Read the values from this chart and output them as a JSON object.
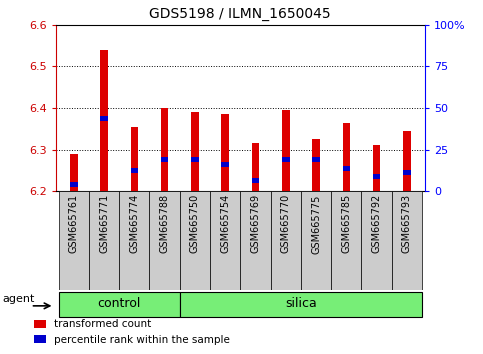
{
  "title": "GDS5198 / ILMN_1650045",
  "samples": [
    "GSM665761",
    "GSM665771",
    "GSM665774",
    "GSM665788",
    "GSM665750",
    "GSM665754",
    "GSM665769",
    "GSM665770",
    "GSM665775",
    "GSM665785",
    "GSM665792",
    "GSM665793"
  ],
  "n_control": 4,
  "transformed_count": [
    6.29,
    6.54,
    6.355,
    6.4,
    6.39,
    6.385,
    6.315,
    6.395,
    6.325,
    6.365,
    6.31,
    6.345
  ],
  "percentile_rank": [
    6.215,
    6.375,
    6.25,
    6.275,
    6.275,
    6.265,
    6.225,
    6.275,
    6.275,
    6.255,
    6.235,
    6.245
  ],
  "ylim_left": [
    6.2,
    6.6
  ],
  "ylim_right": [
    0,
    100
  ],
  "yticks_left": [
    6.2,
    6.3,
    6.4,
    6.5,
    6.6
  ],
  "yticks_right": [
    0,
    25,
    50,
    75,
    100
  ],
  "bar_color": "#dd0000",
  "percentile_color": "#0000cc",
  "bar_width": 0.25,
  "base_value": 6.2,
  "group_color": "#77ee77",
  "tick_box_color": "#cccccc",
  "agent_label": "agent",
  "legend_items": [
    "transformed count",
    "percentile rank within the sample"
  ]
}
